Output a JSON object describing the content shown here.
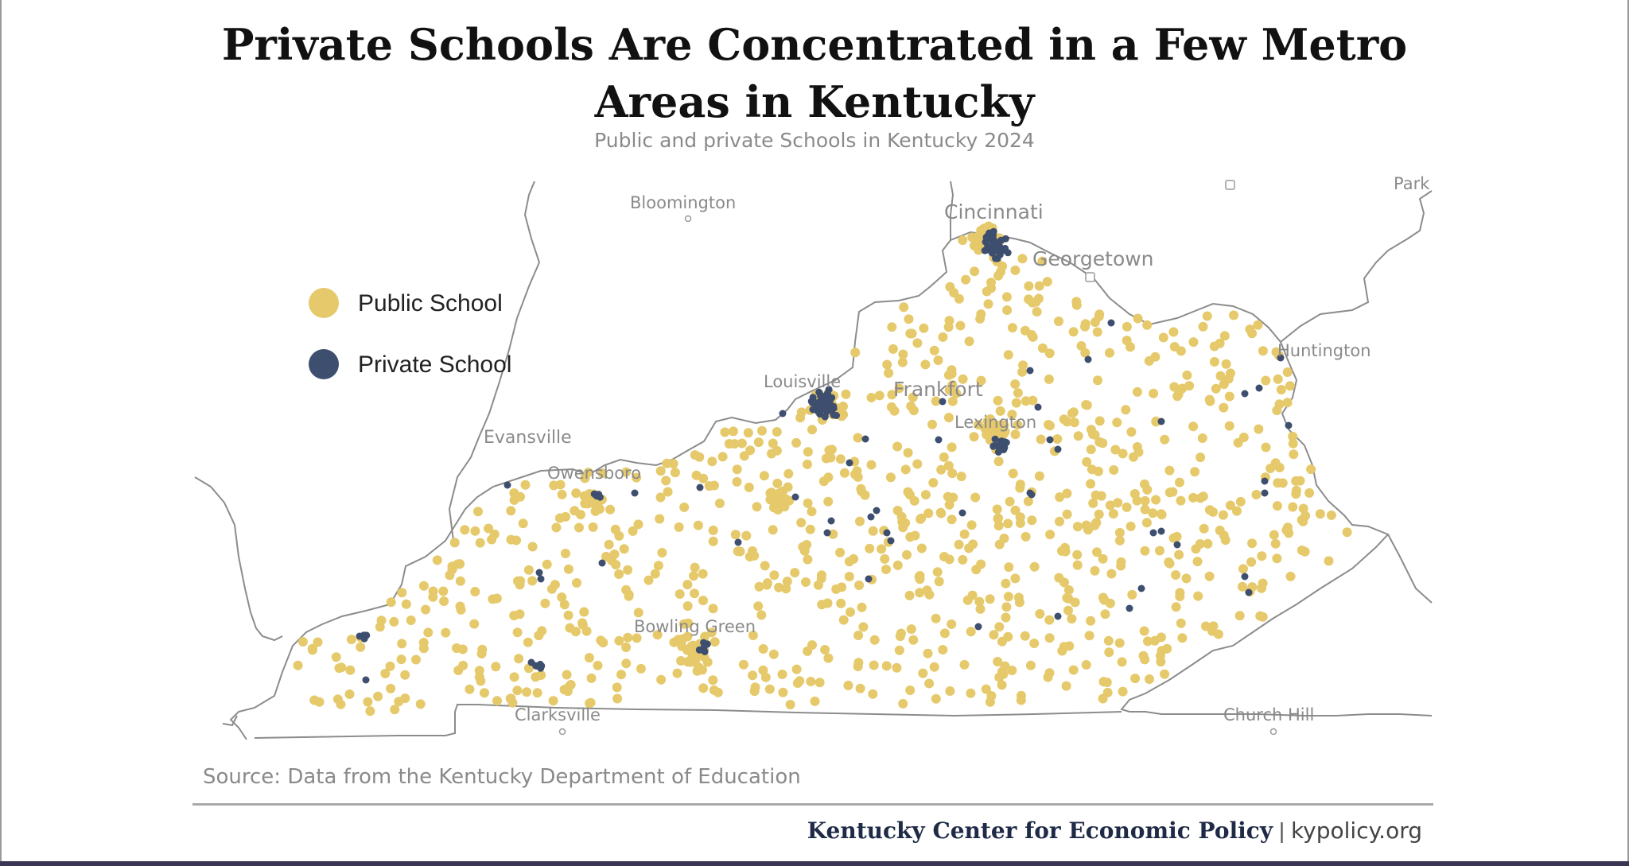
{
  "title": "Private Schools Are Concentrated in a Few Metro Areas in Kentucky",
  "subtitle": "Public and private Schools in Kentucky 2024",
  "source": "Source: Data from the Kentucky Department of Education",
  "footer": {
    "org": "Kentucky Center for Economic Policy",
    "separator": "|",
    "url": "kypolicy.org"
  },
  "legend": [
    {
      "label": "Public School",
      "color": "#e5c96a"
    },
    {
      "label": "Private School",
      "color": "#3d4e6f"
    }
  ],
  "cities": [
    "Bloomington",
    "Cincinnati",
    "Georgetown",
    "Huntington",
    "Louisville",
    "Frankfort",
    "Lexington",
    "Evansville",
    "Owensboro",
    "Bowling Green",
    "Clarksville",
    "Church Hill",
    "Park"
  ],
  "colors": {
    "public": "#e5c96a",
    "private": "#3d4e6f",
    "border": "#8c8c8c",
    "label": "#8a8a8a"
  }
}
